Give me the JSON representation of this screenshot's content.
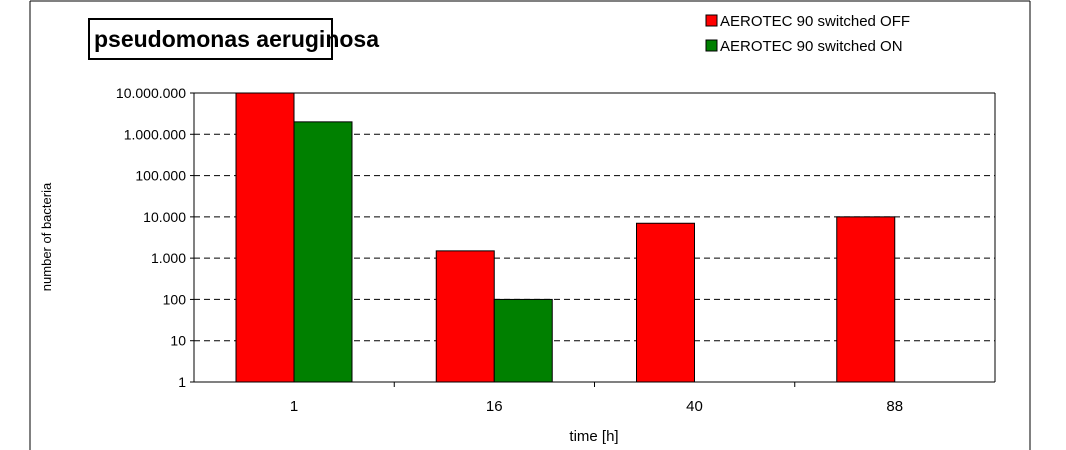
{
  "chart_data": {
    "type": "bar",
    "title": "pseudomonas aeruginosa",
    "xlabel": "time [h]",
    "ylabel": "number of bacteria",
    "categories": [
      "1",
      "16",
      "40",
      "88"
    ],
    "series": [
      {
        "name": "AEROTEC 90 switched OFF",
        "color": "#ff0000",
        "values": [
          10000000,
          1500,
          7000,
          10000
        ]
      },
      {
        "name": "AEROTEC 90 switched ON",
        "color": "#008000",
        "values": [
          2000000,
          100,
          null,
          null
        ]
      }
    ],
    "y_scale": "log",
    "ylim": [
      1,
      10000000
    ],
    "y_ticks": [
      1,
      10,
      100,
      1000,
      10000,
      100000,
      1000000,
      10000000
    ],
    "y_tick_labels": [
      "1",
      "10",
      "100",
      "1.000",
      "10.000",
      "100.000",
      "1.000.000",
      "10.000.000"
    ],
    "grid": "horizontal-dashed",
    "legend_position": "top-right"
  }
}
